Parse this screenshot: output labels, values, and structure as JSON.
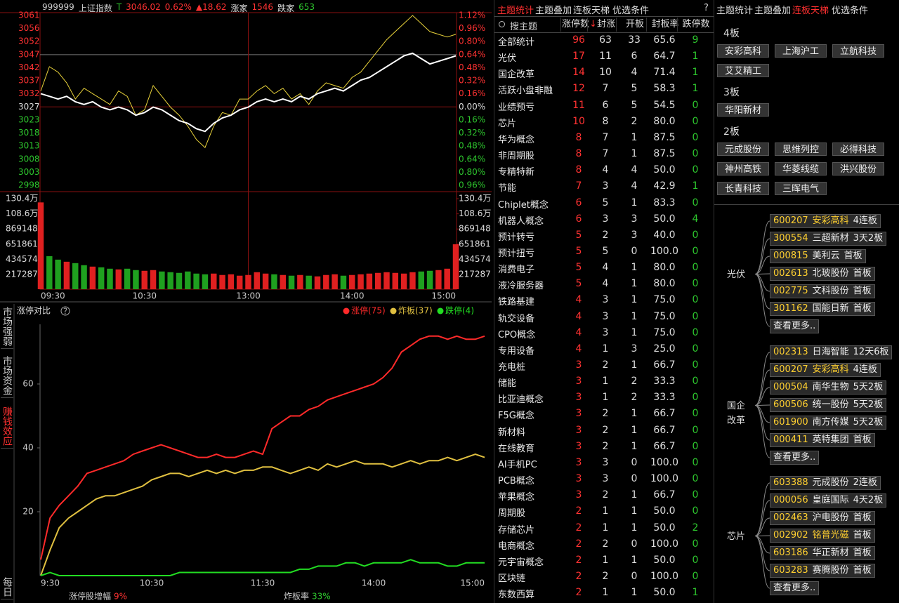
{
  "left_panel": {
    "header": {
      "code": "999999",
      "name": "上证指数",
      "flag": "T",
      "price": "3046.02",
      "change_pct": "0.62%",
      "change": "▲18.62",
      "up_label": "涨家",
      "up_count": "1546",
      "down_label": "跌家",
      "down_count": "653"
    },
    "price_ticks": [
      3061,
      3056,
      3052,
      3047,
      3042,
      3037,
      3032,
      3027,
      3023,
      3018,
      3013,
      3008,
      3003,
      2998
    ],
    "pct_ticks": [
      "1.12%",
      "0.96%",
      "0.80%",
      "0.64%",
      "0.48%",
      "0.32%",
      "0.16%",
      "0.00%",
      "0.16%",
      "0.32%",
      "0.48%",
      "0.64%",
      "0.80%",
      "0.96%"
    ],
    "volume_ticks": [
      {
        "value": 1303722,
        "label": "130.4万"
      },
      {
        "value": 1086435,
        "label": "108.6万"
      },
      869148,
      651861,
      434574,
      217287
    ],
    "time_labels": [
      "09:30",
      "10:30",
      "13:00",
      "14:00",
      "15:00"
    ],
    "series": [
      {
        "color": "#e8d23a",
        "values": [
          3033,
          3042,
          3040,
          3036,
          3030,
          3034,
          3032,
          3030,
          3028,
          3033,
          3031,
          3024,
          3026,
          3035,
          3031,
          3027,
          3024,
          3020,
          3015,
          3012,
          3020,
          3025,
          3024,
          3030,
          3030,
          3033,
          3035,
          3032,
          3034,
          3030,
          3032,
          3028,
          3033,
          3036,
          3035,
          3034,
          3038,
          3040,
          3044,
          3048,
          3052,
          3055,
          3058,
          3061,
          3058,
          3055,
          3054,
          3053,
          3054
        ]
      },
      {
        "color": "#ffffff",
        "values": [
          3032,
          3031,
          3030,
          3031,
          3029,
          3028,
          3029,
          3027,
          3026,
          3027,
          3026,
          3024,
          3025,
          3027,
          3026,
          3024,
          3022,
          3021,
          3019,
          3018,
          3021,
          3023,
          3024,
          3026,
          3027,
          3029,
          3030,
          3029,
          3030,
          3029,
          3031,
          3030,
          3032,
          3033,
          3034,
          3033,
          3035,
          3037,
          3038,
          3040,
          3042,
          3044,
          3046,
          3047,
          3045,
          3043,
          3044,
          3045,
          3046
        ]
      }
    ],
    "volumes": [
      1250000,
      480000,
      430000,
      400000,
      380000,
      350000,
      330000,
      320000,
      300000,
      290000,
      300000,
      280000,
      270000,
      280000,
      260000,
      250000,
      240000,
      260000,
      230000,
      220000,
      230000,
      210000,
      220000,
      200000,
      210000,
      250000,
      230000,
      220000,
      210000,
      200000,
      210000,
      200000,
      190000,
      210000,
      220000,
      200000,
      210000,
      220000,
      230000,
      240000,
      250000,
      240000,
      230000,
      250000,
      260000,
      270000,
      280000,
      300000,
      650000
    ]
  },
  "side_tabs": [
    "市场强弱",
    "市场资金",
    "赚钱效应",
    "每日"
  ],
  "limit_chart": {
    "title": "涨停对比",
    "help": "?",
    "series": [
      {
        "name": "涨停(75)",
        "color": "#ff2a2a",
        "values": [
          5,
          18,
          22,
          25,
          28,
          32,
          33,
          34,
          35,
          36,
          38,
          39,
          40,
          41,
          40,
          39,
          38,
          37,
          37,
          38,
          37,
          37,
          38,
          39,
          38,
          46,
          48,
          50,
          50,
          52,
          53,
          55,
          56,
          57,
          58,
          59,
          60,
          62,
          65,
          70,
          72,
          74,
          75,
          75,
          74,
          75,
          74,
          74,
          75
        ]
      },
      {
        "name": "炸板(37)",
        "color": "#e0c040",
        "values": [
          0,
          8,
          15,
          18,
          20,
          22,
          24,
          25,
          25,
          26,
          27,
          28,
          30,
          31,
          32,
          32,
          31,
          32,
          33,
          32,
          33,
          32,
          33,
          33,
          34,
          34,
          33,
          32,
          33,
          34,
          33,
          35,
          34,
          35,
          36,
          35,
          35,
          35,
          34,
          35,
          36,
          35,
          36,
          36,
          37,
          36,
          37,
          38,
          37
        ]
      },
      {
        "name": "跌停(4)",
        "color": "#22dd22",
        "values": [
          0,
          1,
          0,
          0,
          0,
          0,
          0,
          0,
          0,
          0,
          0,
          0,
          0,
          0,
          0,
          1,
          1,
          1,
          1,
          1,
          1,
          1,
          1,
          1,
          1,
          1,
          1,
          1,
          2,
          2,
          3,
          3,
          3,
          4,
          4,
          3,
          4,
          4,
          4,
          4,
          5,
          4,
          4,
          4,
          3,
          3,
          4,
          4,
          4
        ]
      }
    ],
    "yticks": [
      20,
      40,
      60
    ],
    "time_labels": [
      "9:30",
      "10:30",
      "11:30",
      "14:00",
      "15:00"
    ],
    "footer": [
      {
        "label": "涨停股增幅",
        "value": "9%"
      },
      {
        "label": "炸板率",
        "value": "33%"
      }
    ]
  },
  "theme_table": {
    "tabs": [
      "主题统计",
      "主题叠加",
      "连板天梯",
      "优选条件"
    ],
    "help": "?",
    "search": "搜主题",
    "headers": [
      "涨停数",
      "封涨",
      "开板",
      "封板率",
      "跌停数"
    ],
    "sort_arrow": "↓",
    "rows": [
      [
        "全部统计",
        "96",
        "63",
        "33",
        "65.6",
        "9"
      ],
      [
        "光伏",
        "17",
        "11",
        "6",
        "64.7",
        "1"
      ],
      [
        "国企改革",
        "14",
        "10",
        "4",
        "71.4",
        "1"
      ],
      [
        "活跃小盘非融",
        "12",
        "7",
        "5",
        "58.3",
        "1"
      ],
      [
        "业绩预亏",
        "11",
        "6",
        "5",
        "54.5",
        "0"
      ],
      [
        "芯片",
        "10",
        "8",
        "2",
        "80.0",
        "0"
      ],
      [
        "华为概念",
        "8",
        "7",
        "1",
        "87.5",
        "0"
      ],
      [
        "非周期股",
        "8",
        "7",
        "1",
        "87.5",
        "0"
      ],
      [
        "专精特新",
        "8",
        "4",
        "4",
        "50.0",
        "0"
      ],
      [
        "节能",
        "7",
        "3",
        "4",
        "42.9",
        "1"
      ],
      [
        "Chiplet概念",
        "6",
        "5",
        "1",
        "83.3",
        "0"
      ],
      [
        "机器人概念",
        "6",
        "3",
        "3",
        "50.0",
        "4"
      ],
      [
        "预计转亏",
        "5",
        "2",
        "3",
        "40.0",
        "0"
      ],
      [
        "预计扭亏",
        "5",
        "5",
        "0",
        "100.0",
        "0"
      ],
      [
        "消费电子",
        "5",
        "4",
        "1",
        "80.0",
        "0"
      ],
      [
        "液冷服务器",
        "5",
        "4",
        "1",
        "80.0",
        "0"
      ],
      [
        "铁路基建",
        "4",
        "3",
        "1",
        "75.0",
        "0"
      ],
      [
        "轨交设备",
        "4",
        "3",
        "1",
        "75.0",
        "0"
      ],
      [
        "CPO概念",
        "4",
        "3",
        "1",
        "75.0",
        "0"
      ],
      [
        "专用设备",
        "4",
        "1",
        "3",
        "25.0",
        "0"
      ],
      [
        "充电桩",
        "3",
        "2",
        "1",
        "66.7",
        "0"
      ],
      [
        "储能",
        "3",
        "1",
        "2",
        "33.3",
        "0"
      ],
      [
        "比亚迪概念",
        "3",
        "1",
        "2",
        "33.3",
        "0"
      ],
      [
        "F5G概念",
        "3",
        "2",
        "1",
        "66.7",
        "0"
      ],
      [
        "新材料",
        "3",
        "2",
        "1",
        "66.7",
        "0"
      ],
      [
        "在线教育",
        "3",
        "2",
        "1",
        "66.7",
        "0"
      ],
      [
        "AI手机PC",
        "3",
        "3",
        "0",
        "100.0",
        "0"
      ],
      [
        "PCB概念",
        "3",
        "3",
        "0",
        "100.0",
        "0"
      ],
      [
        "苹果概念",
        "3",
        "2",
        "1",
        "66.7",
        "0"
      ],
      [
        "周期股",
        "2",
        "1",
        "1",
        "50.0",
        "0"
      ],
      [
        "存储芯片",
        "2",
        "1",
        "1",
        "50.0",
        "2"
      ],
      [
        "电商概念",
        "2",
        "2",
        "0",
        "100.0",
        "0"
      ],
      [
        "元宇宙概念",
        "2",
        "1",
        "1",
        "50.0",
        "0"
      ],
      [
        "区块链",
        "2",
        "2",
        "0",
        "100.0",
        "0"
      ],
      [
        "东数西算",
        "2",
        "1",
        "1",
        "50.0",
        "1"
      ]
    ]
  },
  "ladder": {
    "tabs": [
      "主题统计",
      "主题叠加",
      "连板天梯",
      "优选条件"
    ],
    "levels": [
      {
        "label": "4板",
        "stocks": [
          "安彩高科",
          "上海沪工",
          "立航科技",
          "艾艾精工"
        ]
      },
      {
        "label": "3板",
        "stocks": [
          "华阳新材"
        ]
      },
      {
        "label": "2板",
        "stocks": [
          "元成股份",
          "思维列控",
          "必得科技",
          "神州高铁",
          "华菱线缆",
          "洪兴股份",
          "长青科技",
          "三晖电气"
        ]
      }
    ],
    "groups": [
      {
        "theme": "光伏",
        "items": [
          [
            "600207",
            "安彩高科",
            "4连板"
          ],
          [
            "300554",
            "三超新材",
            "3天2板"
          ],
          [
            "000815",
            "美利云",
            "首板"
          ],
          [
            "002613",
            "北玻股份",
            "首板"
          ],
          [
            "002775",
            "文科股份",
            "首板"
          ],
          [
            "301162",
            "国能日新",
            "首板"
          ]
        ],
        "more": "查看更多.."
      },
      {
        "theme": "国企改革",
        "items": [
          [
            "002313",
            "日海智能",
            "12天6板"
          ],
          [
            "600207",
            "安彩高科",
            "4连板"
          ],
          [
            "000504",
            "南华生物",
            "5天2板"
          ],
          [
            "600506",
            "统一股份",
            "5天2板"
          ],
          [
            "601900",
            "南方传媒",
            "5天2板"
          ],
          [
            "000411",
            "英特集团",
            "首板"
          ]
        ],
        "more": "查看更多.."
      },
      {
        "theme": "芯片",
        "items": [
          [
            "603388",
            "元成股份",
            "2连板"
          ],
          [
            "000056",
            "皇庭国际",
            "4天2板"
          ],
          [
            "002463",
            "沪电股份",
            "首板"
          ],
          [
            "002902",
            "铭普光磁",
            "首板"
          ],
          [
            "603186",
            "华正新材",
            "首板"
          ],
          [
            "603283",
            "赛腾股份",
            "首板"
          ]
        ],
        "more": "查看更多.."
      }
    ],
    "highlight": [
      "安彩高科",
      "铭普光磁"
    ]
  }
}
